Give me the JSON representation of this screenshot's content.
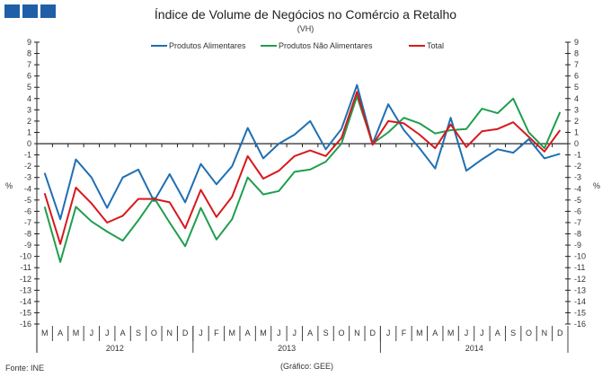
{
  "header": {
    "title": "Índice de Volume de Negócios no Comércio a Retalho",
    "subtitle": "(VH)"
  },
  "footer": {
    "source": "Fonte: INE",
    "credit": "(Gráfico: GEE)"
  },
  "chart_data": {
    "type": "line",
    "title": "Índice de Volume de Negócios no Comércio a Retalho",
    "subtitle": "(VH)",
    "ylabel": "%",
    "ylim": [
      -16,
      9
    ],
    "yticks": [
      9,
      8,
      7,
      6,
      5,
      4,
      3,
      2,
      1,
      0,
      -1,
      -2,
      -3,
      -4,
      -5,
      -6,
      -7,
      -8,
      -9,
      -10,
      -11,
      -12,
      -13,
      -14,
      -15,
      -16
    ],
    "legend_position": "top",
    "grid": false,
    "years": [
      {
        "label": "2012",
        "months": 10
      },
      {
        "label": "2013",
        "months": 12
      },
      {
        "label": "2014",
        "months": 12
      }
    ],
    "categories": [
      "M",
      "A",
      "M",
      "J",
      "J",
      "A",
      "S",
      "O",
      "N",
      "D",
      "J",
      "F",
      "M",
      "A",
      "M",
      "J",
      "J",
      "A",
      "S",
      "O",
      "N",
      "D",
      "J",
      "F",
      "M",
      "A",
      "M",
      "J",
      "J",
      "A",
      "S",
      "O",
      "N",
      "D"
    ],
    "series": [
      {
        "name": "Produtos Alimentares",
        "color": "#1f6fb2",
        "values": [
          -2.6,
          -6.7,
          -1.4,
          -3.0,
          -5.7,
          -3.0,
          -2.3,
          -5.1,
          -2.7,
          -5.2,
          -1.8,
          -3.6,
          -2.0,
          1.4,
          -1.3,
          0.0,
          0.8,
          2.0,
          -0.5,
          1.3,
          5.2,
          0.0,
          3.5,
          1.2,
          -0.4,
          -2.2,
          2.3,
          -2.4,
          -1.4,
          -0.5,
          -0.8,
          0.4,
          -1.3,
          -0.9
        ]
      },
      {
        "name": "Produtos Não Alimentares",
        "color": "#1f9e4e",
        "values": [
          -5.6,
          -10.5,
          -5.6,
          -6.9,
          -7.8,
          -8.6,
          -6.8,
          -4.8,
          -7.0,
          -9.1,
          -5.7,
          -8.5,
          -6.7,
          -3.0,
          -4.5,
          -4.2,
          -2.5,
          -2.3,
          -1.6,
          0.0,
          4.2,
          0.0,
          1.0,
          2.3,
          1.8,
          0.9,
          1.2,
          1.3,
          3.1,
          2.7,
          4.0,
          1.0,
          -0.4,
          2.8
        ]
      },
      {
        "name": "Total",
        "color": "#d7191c",
        "values": [
          -4.4,
          -8.9,
          -3.9,
          -5.3,
          -7.0,
          -6.4,
          -4.9,
          -4.9,
          -5.2,
          -7.5,
          -4.1,
          -6.5,
          -4.7,
          -1.1,
          -3.1,
          -2.4,
          -1.1,
          -0.6,
          -1.1,
          0.5,
          4.6,
          -0.1,
          2.0,
          1.8,
          0.8,
          -0.4,
          1.7,
          -0.3,
          1.1,
          1.3,
          1.9,
          0.6,
          -0.7,
          1.2
        ]
      }
    ]
  }
}
